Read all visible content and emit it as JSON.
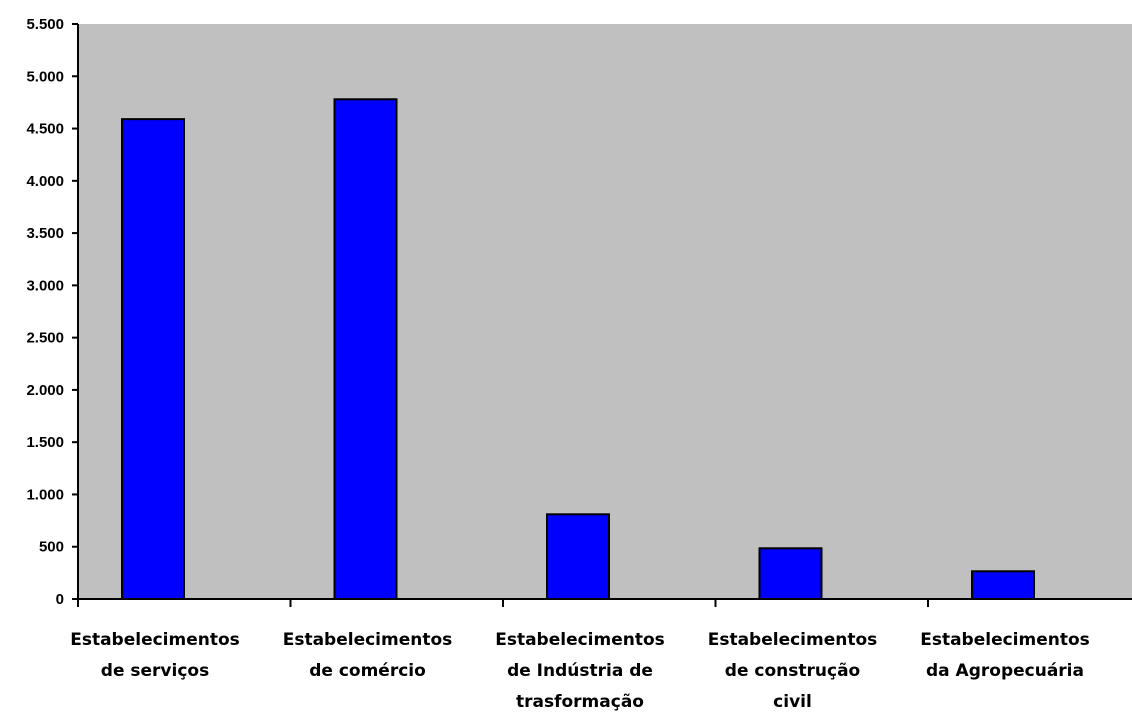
{
  "chart_data": {
    "type": "bar",
    "categories": [
      [
        "Estabelecimentos",
        "de serviços"
      ],
      [
        "Estabelecimentos",
        "de comércio"
      ],
      [
        "Estabelecimentos",
        "de Indústria de",
        "trasformação"
      ],
      [
        "Estabelecimentos",
        "de construção",
        "civil"
      ],
      [
        "Estabelecimentos",
        "da Agropecuária"
      ]
    ],
    "values": [
      4590,
      4780,
      810,
      485,
      265
    ],
    "ylim": [
      0,
      5500
    ],
    "yticks": [
      0,
      500,
      1000,
      1500,
      2000,
      2500,
      3000,
      3500,
      4000,
      4500,
      5000,
      5500
    ],
    "ytick_labels": [
      "0",
      "500",
      "1.000",
      "1.500",
      "2.000",
      "2.500",
      "3.000",
      "3.500",
      "4.000",
      "4.500",
      "5.000",
      "5.500"
    ],
    "grid": false,
    "legend": "none",
    "title": "",
    "xlabel": "",
    "ylabel": "",
    "colors": {
      "plot_background": "#c0c0c0",
      "bar_fill": "#0000ff",
      "bar_stroke": "#000000",
      "axis": "#000000"
    }
  }
}
